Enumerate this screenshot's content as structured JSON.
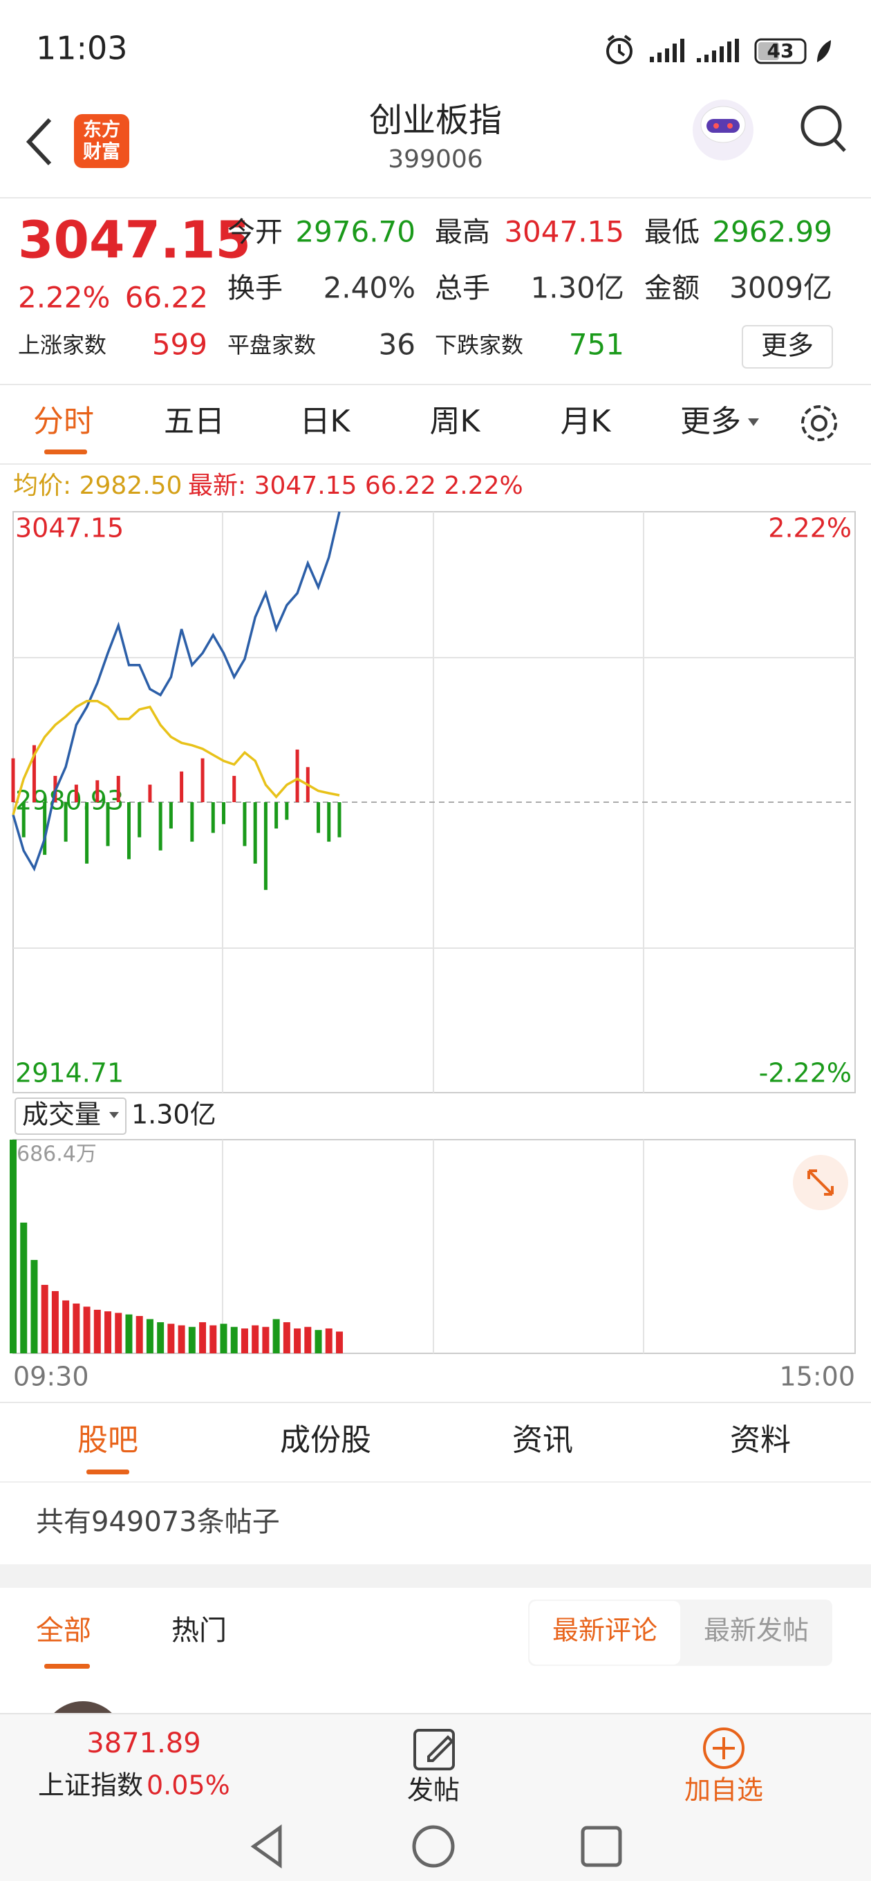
{
  "status_bar": {
    "time": "11:03",
    "battery": "43"
  },
  "header": {
    "logo_top": "东方",
    "logo_bottom": "财富",
    "title": "创业板指",
    "code": "399006"
  },
  "quote": {
    "price": "3047.15",
    "change_pct": "2.22%",
    "change": "66.22",
    "stats": [
      {
        "label": "今开",
        "value": "2976.70",
        "color": "#1a9a1a"
      },
      {
        "label": "最高",
        "value": "3047.15",
        "color": "#e0262b"
      },
      {
        "label": "最低",
        "value": "2962.99",
        "color": "#1a9a1a"
      },
      {
        "label": "换手",
        "value": "2.40%",
        "color": "#333333"
      },
      {
        "label": "总手",
        "value": "1.30亿",
        "color": "#333333"
      },
      {
        "label": "金额",
        "value": "3009亿",
        "color": "#333333"
      }
    ],
    "breadth": [
      {
        "label": "上涨家数",
        "value": "599",
        "color": "#e0262b"
      },
      {
        "label": "平盘家数",
        "value": "36",
        "color": "#333333"
      },
      {
        "label": "下跌家数",
        "value": "751",
        "color": "#1a9a1a"
      }
    ],
    "more": "更多"
  },
  "tabs": [
    "分时",
    "五日",
    "日K",
    "周K",
    "月K",
    "更多"
  ],
  "info": {
    "avg": "均价: 2982.50",
    "latest": "最新: 3047.15 66.22 2.22%"
  },
  "chart_data": [
    {
      "type": "line",
      "x": [
        0,
        3,
        6,
        9,
        12,
        15,
        18,
        21,
        24,
        27,
        30,
        33,
        36,
        39,
        42,
        45,
        48,
        51,
        54,
        57,
        60,
        63,
        66,
        69,
        72,
        75,
        78,
        81,
        84,
        87,
        90,
        93
      ],
      "xlim": [
        0,
        240
      ],
      "ylim": [
        2914.71,
        3047.15
      ],
      "yticks": [
        3047.15,
        2980.93,
        2914.71
      ],
      "y2lim": [
        -2.22,
        2.22
      ],
      "y2ticks": [
        {
          "value": 2.22,
          "label": "2.22%"
        },
        {
          "value": -2.22,
          "label": "-2.22%"
        }
      ],
      "series": [
        {
          "color": "#2c5fa8",
          "values": [
            2978.06,
            2969.87,
            2965.77,
            2972.6,
            2983.52,
            2988.98,
            2998.54,
            3002.64,
            3008.1,
            3014.93,
            3021.21,
            3012.2,
            3012.2,
            3006.73,
            3005.37,
            3009.47,
            3020.39,
            3012.2,
            3014.93,
            3019.02,
            3014.93,
            3009.47,
            3013.56,
            3023.12,
            3028.58,
            3020.39,
            3025.85,
            3028.58,
            3035.41,
            3029.95,
            3036.77,
            3047.15
          ]
        },
        {
          "color": "#e8c21a",
          "values": [
            2978.06,
            2986.25,
            2991.72,
            2995.81,
            2998.54,
            3000.45,
            3002.64,
            3004.0,
            3004.0,
            3002.64,
            2999.91,
            2999.91,
            3002.09,
            3002.64,
            2998.54,
            2995.81,
            2994.45,
            2993.9,
            2993.08,
            2991.72,
            2990.35,
            2989.53,
            2992.26,
            2990.35,
            2984.89,
            2982.16,
            2984.89,
            2986.25,
            2984.89,
            2983.52,
            2982.98,
            2982.5
          ]
        }
      ],
      "bars": [
        10,
        -8,
        13,
        -12,
        6,
        -9,
        4,
        -14,
        5,
        -10,
        6,
        -13,
        -8,
        4,
        -11,
        -6,
        7,
        -9,
        10,
        -7,
        -5,
        6,
        -10,
        -14,
        -20,
        -6,
        -4,
        12,
        8,
        -7,
        -9,
        -8
      ],
      "up_color": "#e0262b",
      "down_color": "#1a9a1a"
    },
    {
      "type": "bar",
      "label": "成交量",
      "total": "1.30亿",
      "x": [
        0,
        3,
        6,
        9,
        12,
        15,
        18,
        21,
        24,
        27,
        30,
        33,
        36,
        39,
        42,
        45,
        48,
        51,
        54,
        57,
        60,
        63,
        66,
        69,
        72,
        75,
        78,
        81,
        84,
        87,
        90,
        93
      ],
      "xlim": [
        0,
        240
      ],
      "xticks": [
        {
          "value": 0,
          "label": "09:30"
        },
        {
          "value": 240,
          "label": "15:00"
        }
      ],
      "ylim": [
        0,
        686.4
      ],
      "yticks": [
        {
          "value": 686.4,
          "label": "686.4万"
        }
      ],
      "values": [
        686.4,
        420,
        300,
        220,
        200,
        170,
        160,
        150,
        140,
        135,
        130,
        125,
        120,
        110,
        100,
        95,
        90,
        85,
        100,
        90,
        95,
        85,
        80,
        90,
        85,
        110,
        100,
        80,
        85,
        75,
        80,
        70
      ],
      "up_color": "#e0262b",
      "down_color": "#1a9a1a"
    }
  ],
  "sections": {
    "tabs": [
      "股吧",
      "成份股",
      "资讯",
      "资料"
    ],
    "post_count": "共有949073条帖子",
    "filters": [
      "全部",
      "热门"
    ],
    "sorts": [
      "最新评论",
      "最新发帖"
    ]
  },
  "footer": {
    "index_value": "3871.89",
    "index_name": "上证指数",
    "index_change": "0.05%",
    "post": "发帖",
    "watch": "加自选"
  }
}
